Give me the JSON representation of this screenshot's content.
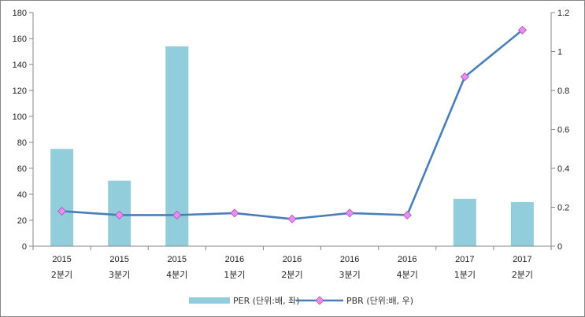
{
  "chart_data": {
    "type": "bar",
    "categories": [
      [
        "2015",
        "2분기"
      ],
      [
        "2015",
        "3분기"
      ],
      [
        "2015",
        "4분기"
      ],
      [
        "2016",
        "1분기"
      ],
      [
        "2016",
        "2분기"
      ],
      [
        "2016",
        "3분기"
      ],
      [
        "2016",
        "4분기"
      ],
      [
        "2017",
        "1분기"
      ],
      [
        "2017",
        "2분기"
      ]
    ],
    "series": [
      {
        "name": "PER (단위:배, 좌)",
        "type": "bar",
        "axis": "left",
        "color": "#92cddc",
        "values": [
          75,
          50.5,
          154,
          null,
          null,
          null,
          null,
          36.5,
          34
        ]
      },
      {
        "name": "PBR (단위:배, 우)",
        "type": "line",
        "axis": "right",
        "color": "#4a7ebb",
        "marker_color": "#e88ef0",
        "values": [
          0.18,
          0.16,
          0.16,
          0.17,
          0.14,
          0.17,
          0.16,
          0.87,
          1.11
        ]
      }
    ],
    "y_left": {
      "min": 0,
      "max": 180,
      "ticks": [
        0,
        20,
        40,
        60,
        80,
        100,
        120,
        140,
        160,
        180
      ]
    },
    "y_right": {
      "min": 0,
      "max": 1.2,
      "ticks": [
        "0",
        "0.2",
        "0.4",
        "0.6",
        "0.8",
        "1",
        "1.2"
      ]
    },
    "title": "",
    "xlabel": "",
    "ylabel": "",
    "grid": false,
    "legend": "bottom"
  }
}
